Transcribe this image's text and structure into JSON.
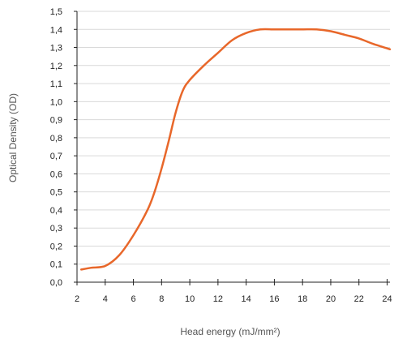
{
  "chart_data": {
    "type": "line",
    "ylabel": "Optical Density (OD)",
    "xlabel": "Head energy (mJ/mm²)",
    "xlim": [
      2,
      24.2
    ],
    "ylim": [
      0,
      1.5
    ],
    "grid": true,
    "x_ticks": [
      "2",
      "4",
      "6",
      "8",
      "10",
      "12",
      "14",
      "16",
      "18",
      "20",
      "22",
      "24"
    ],
    "y_ticks": [
      "0,0",
      "0,1",
      "0,2",
      "0,3",
      "0,4",
      "0,5",
      "0,6",
      "0,7",
      "0,8",
      "0,9",
      "1,0",
      "1,1",
      "1,2",
      "1,3",
      "1,4",
      "1,5"
    ],
    "series": [
      {
        "color": "#e8672a",
        "x": [
          2.3,
          3,
          4,
          5,
          6,
          7,
          7.5,
          8,
          8.5,
          9,
          9.5,
          10,
          11,
          12,
          13,
          14,
          15,
          16,
          17,
          18,
          19,
          20,
          21,
          22,
          23,
          24.2
        ],
        "y": [
          0.07,
          0.08,
          0.09,
          0.15,
          0.26,
          0.4,
          0.5,
          0.63,
          0.78,
          0.94,
          1.06,
          1.12,
          1.2,
          1.27,
          1.34,
          1.38,
          1.4,
          1.4,
          1.4,
          1.4,
          1.4,
          1.39,
          1.37,
          1.35,
          1.32,
          1.29
        ]
      }
    ]
  }
}
